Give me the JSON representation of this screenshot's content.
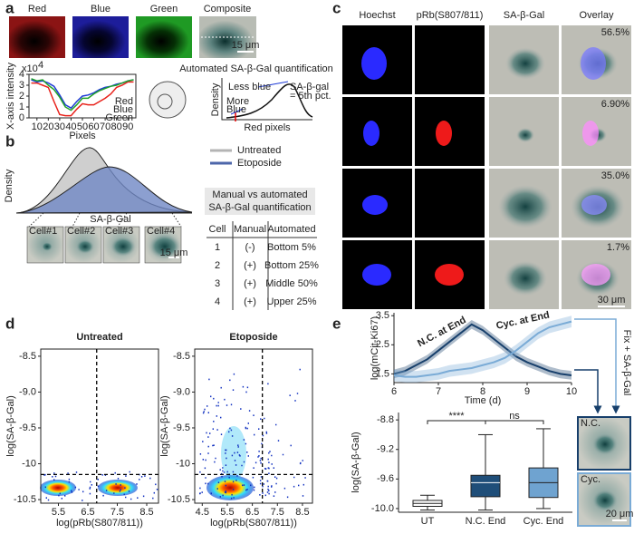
{
  "panel_labels": [
    "a",
    "b",
    "c",
    "d",
    "e"
  ],
  "a": {
    "channels": [
      "Red",
      "Blue",
      "Green",
      "Composite"
    ],
    "scale_bar": "15 μm",
    "intensity": {
      "type": "line",
      "ylabel": "X-axis intensity",
      "y_multiplier": "x10",
      "y_exponent": "4",
      "xlabel": "Pixels",
      "x": [
        5,
        10,
        15,
        20,
        25,
        30,
        35,
        40,
        45,
        50,
        55,
        60,
        65,
        70,
        75,
        80,
        85,
        90,
        95
      ],
      "xlim": [
        3,
        97
      ],
      "ylim": [
        0,
        4
      ],
      "xticks": [
        10,
        20,
        30,
        40,
        50,
        60,
        70,
        80,
        90
      ],
      "yticks": [
        0,
        1,
        2,
        3,
        4
      ],
      "series": [
        {
          "name": "Red",
          "color": "#e8221b",
          "values": [
            3.2,
            3.2,
            3.0,
            2.8,
            1.5,
            0.3,
            0.2,
            0.2,
            0.8,
            1.3,
            1.2,
            1.2,
            1.5,
            1.8,
            2.2,
            2.8,
            3.0,
            3.3,
            3.3
          ]
        },
        {
          "name": "Blue",
          "color": "#1f3bd6",
          "values": [
            3.5,
            3.3,
            3.4,
            3.2,
            2.9,
            2.1,
            1.2,
            0.9,
            1.5,
            2.0,
            2.1,
            2.3,
            2.6,
            2.8,
            2.9,
            3.1,
            3.2,
            3.4,
            3.5
          ]
        },
        {
          "name": "Green",
          "color": "#22a32a",
          "values": [
            3.6,
            3.4,
            3.5,
            3.0,
            2.6,
            1.9,
            1.0,
            0.7,
            1.2,
            1.8,
            1.8,
            2.2,
            2.5,
            2.7,
            2.9,
            3.0,
            3.2,
            3.4,
            3.5
          ]
        }
      ]
    },
    "schematic": {
      "title": "Automated SA-β-Gal quantification",
      "less": "Less blue",
      "more": [
        "More",
        "Blue"
      ],
      "threshold": [
        "SA-β-gal",
        "= 5th pct."
      ],
      "xlabel": "Red pixels",
      "ylabel": "Density"
    }
  },
  "b": {
    "legend": [
      {
        "name": "Untreated",
        "color": "#b4b4b4"
      },
      {
        "name": "Etoposide",
        "color": "#4d66aa"
      }
    ],
    "ylabel": "Density",
    "xlabel": "SA-β-Gal",
    "cells": [
      "Cell#1",
      "Cell#2",
      "Cell#3",
      "Cell#4"
    ],
    "scale_bar": "15 μm",
    "table": {
      "title": [
        "Manual vs automated",
        "SA-β-Gal quantification"
      ],
      "header": [
        "Cell",
        "Manual",
        "Automated"
      ],
      "rows": [
        [
          "1",
          "(-)",
          "Bottom 5%"
        ],
        [
          "2",
          "(+)",
          "Bottom 25%"
        ],
        [
          "3",
          "(+)",
          "Middle 50%"
        ],
        [
          "4",
          "(+)",
          "Upper 25%"
        ]
      ],
      "manual_colors": [
        "#1f6fd0",
        "#d42020",
        "#d42020",
        "#d42020"
      ]
    }
  },
  "c": {
    "columns": [
      {
        "name": "Hoechst",
        "color": "#1a1aff"
      },
      {
        "name": "pRb(S807/811)",
        "color": "#e60000"
      },
      {
        "name": "SA-β-Gal",
        "color": "#222222"
      },
      {
        "name": "Overlay",
        "color": "#222222"
      }
    ],
    "percentages": [
      "56.5%",
      "6.90%",
      "35.0%",
      "1.7%"
    ],
    "scale_bar": "30 μm"
  },
  "d": {
    "charts": [
      {
        "type": "scatter",
        "title": "Untreated",
        "xlabel": "log(pRb(S807/811))",
        "ylabel": "log(SA-β-Gal)",
        "xlim": [
          4.9,
          8.9
        ],
        "ylim": [
          -10.55,
          -8.4
        ],
        "xticks": [
          5.5,
          6.5,
          7.5,
          8.5
        ],
        "yticks": [
          -8.5,
          {
            "value": -9,
            "label": "-9.0"
          },
          -9.5,
          -10,
          -10.5
        ],
        "threshold_x": 6.8,
        "threshold_y": -10.15
      },
      {
        "type": "scatter",
        "title": "Etoposide",
        "xlabel": "log(pRb(S807/811))",
        "ylabel": "log(SA-β-Gal)",
        "xlim": [
          4.2,
          8.9
        ],
        "ylim": [
          -10.55,
          -8.4
        ],
        "xticks": [
          4.5,
          5.5,
          6.5,
          7.5,
          8.5
        ],
        "yticks": [
          -8.5,
          {
            "value": -9,
            "label": "-9.0"
          },
          -9.5,
          -10,
          -10.5
        ],
        "threshold_x": 6.9,
        "threshold_y": -10.15
      }
    ]
  },
  "e": {
    "time_course": {
      "type": "line",
      "ylabel": "log(mCit-Ki67)",
      "xlabel": "Time (d)",
      "x": [
        6,
        6.25,
        6.5,
        6.75,
        7,
        7.25,
        7.5,
        7.75,
        8,
        8.25,
        8.5,
        8.75,
        9,
        9.25,
        9.5,
        9.75,
        10
      ],
      "xlim": [
        6,
        10
      ],
      "ylim": [
        1.2,
        3.6
      ],
      "xticks": [
        6,
        7,
        8,
        9,
        10
      ],
      "yticks": [
        1.5,
        2.5,
        3.5
      ],
      "series": [
        {
          "name": "N.C. at End",
          "color": "#173f6b",
          "values": [
            1.5,
            1.6,
            1.8,
            2.0,
            2.3,
            2.6,
            2.9,
            3.2,
            3.0,
            2.7,
            2.4,
            2.1,
            1.9,
            1.75,
            1.6,
            1.5,
            1.45
          ],
          "error": 0.15
        },
        {
          "name": "Cyc. at End",
          "color": "#7aabd6",
          "values": [
            1.45,
            1.4,
            1.4,
            1.45,
            1.5,
            1.6,
            1.65,
            1.7,
            1.8,
            1.9,
            2.05,
            2.3,
            2.6,
            2.9,
            3.1,
            3.2,
            3.3
          ],
          "error": 0.2
        }
      ]
    },
    "fix_label": "Fix + SA-β-Gal",
    "image_labels": [
      "N.C.",
      "Cyc."
    ],
    "scale_bar": "20 μm",
    "sa_gal": {
      "type": "box",
      "ylabel": "log(SA-β-Gal)",
      "categories": [
        "UT",
        "N.C. End",
        "Cyc. End"
      ],
      "colors": [
        "#ffffff",
        "#1f4e79",
        "#6fa3d0"
      ],
      "boxes": [
        {
          "min": -10.02,
          "q1": -9.97,
          "median": -9.93,
          "q3": -9.89,
          "max": -9.82
        },
        {
          "min": -10.02,
          "q1": -9.84,
          "median": -9.65,
          "q3": -9.55,
          "max": -9.0
        },
        {
          "min": -10.0,
          "q1": -9.85,
          "median": -9.65,
          "q3": -9.45,
          "max": -8.92
        }
      ],
      "ylim": [
        -10.05,
        -8.7
      ],
      "yticks": [
        -8.8,
        -9.2,
        -9.6,
        {
          "value": -10,
          "label": "-10.0"
        }
      ],
      "significance": [
        "****",
        "ns"
      ]
    }
  }
}
